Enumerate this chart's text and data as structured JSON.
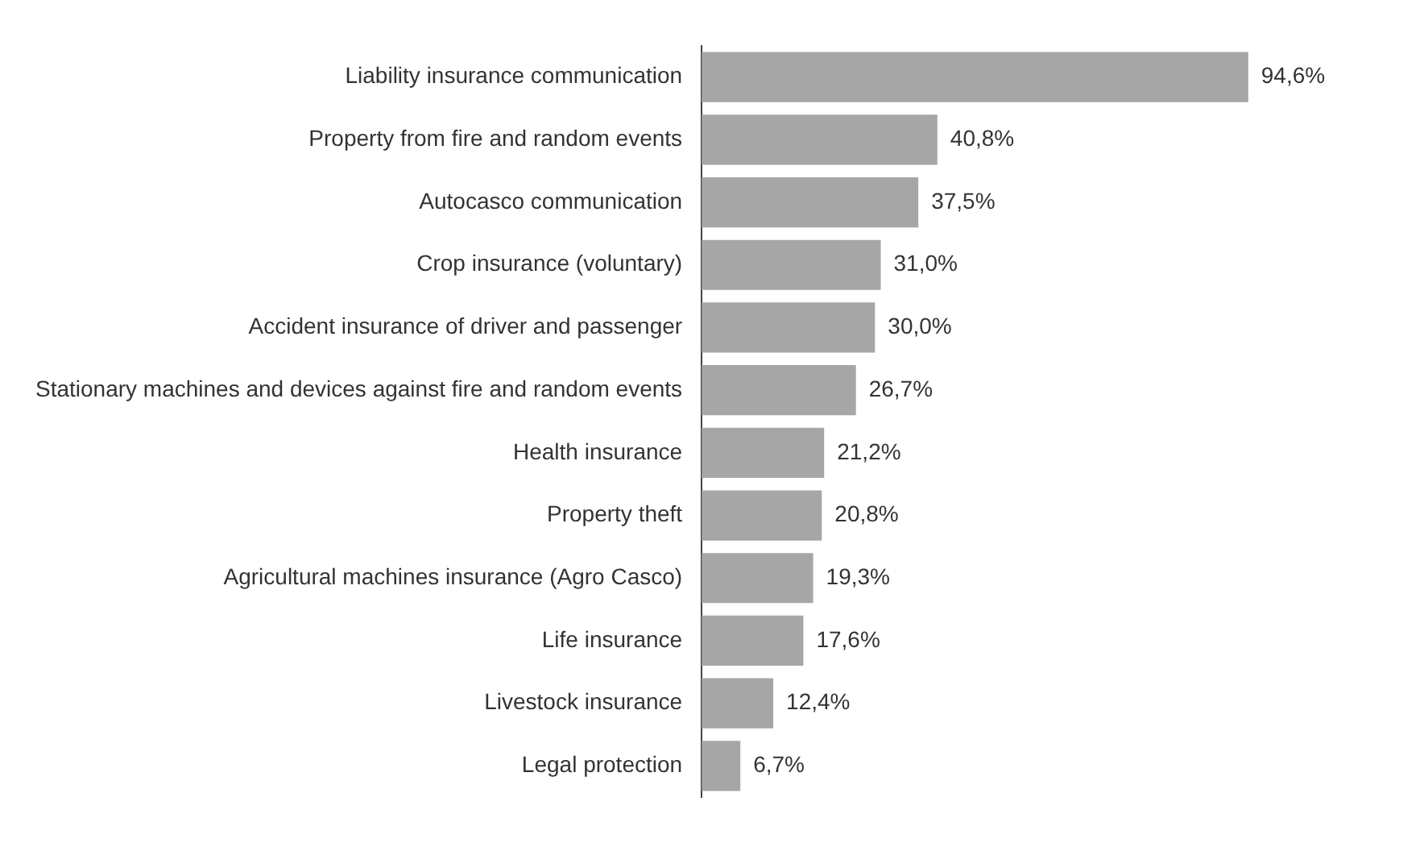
{
  "chart_data": {
    "type": "bar",
    "orientation": "horizontal",
    "categories": [
      "Liability insurance communication",
      "Property from fire and random events",
      "Autocasco communication",
      "Crop insurance (voluntary)",
      "Accident insurance of driver and passenger",
      "Stationary machines and devices against fire and random events",
      "Health insurance",
      "Property theft",
      "Agricultural machines insurance (Agro Casco)",
      "Life insurance",
      "Livestock insurance",
      "Legal protection"
    ],
    "values": [
      94.6,
      40.8,
      37.5,
      31.0,
      30.0,
      26.7,
      21.2,
      20.8,
      19.3,
      17.6,
      12.4,
      6.7
    ],
    "value_labels": [
      "94,6%",
      "40,8%",
      "37,5%",
      "31,0%",
      "30,0%",
      "26,7%",
      "21,2%",
      "20,8%",
      "19,3%",
      "17,6%",
      "12,4%",
      "6,7%"
    ],
    "color": "#a6a6a6"
  }
}
